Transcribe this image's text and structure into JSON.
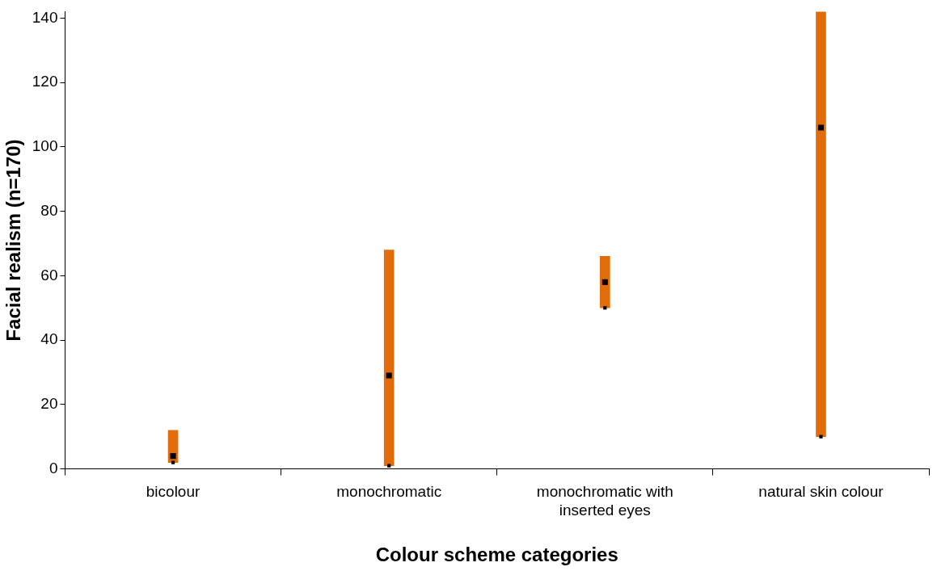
{
  "chart_data": {
    "type": "bar",
    "xlabel": "Colour scheme categories",
    "ylabel": "Facial realism (n=170)",
    "categories": [
      "bicolour",
      "monochromatic",
      "monochromatic with inserted eyes",
      "natural skin colour"
    ],
    "series": [
      {
        "type": "bar",
        "color": "#e36c0a",
        "base": [
          2,
          1,
          50,
          10
        ],
        "values": [
          10,
          67,
          16,
          132
        ]
      },
      {
        "type": "scatter",
        "color": "#000000",
        "x": [
          "bicolour",
          "monochromatic",
          "monochromatic with inserted eyes",
          "natural skin colour"
        ],
        "values": [
          4,
          29,
          58,
          106
        ]
      },
      {
        "type": "scatter",
        "color": "#000000",
        "x": [
          "bicolour",
          "monochromatic",
          "monochromatic with inserted eyes",
          "natural skin colour"
        ],
        "values": [
          2,
          1,
          50,
          10
        ]
      }
    ],
    "ylim": [
      0,
      142
    ],
    "yticks": [
      0,
      20,
      40,
      60,
      80,
      100,
      120,
      140
    ]
  }
}
